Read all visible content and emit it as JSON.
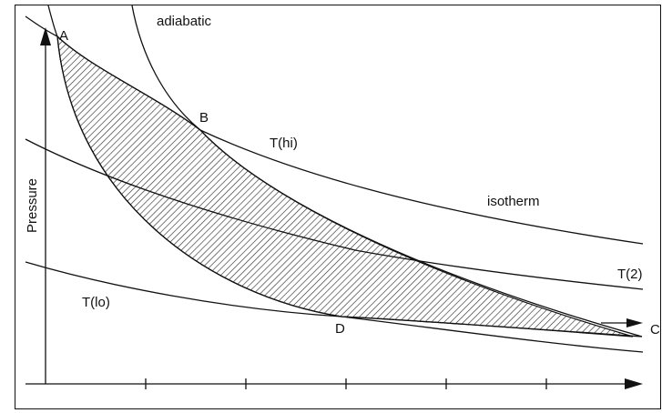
{
  "labels": {
    "adiabatic": "adiabatic",
    "point_a": "A",
    "point_b": "B",
    "point_d": "D",
    "t_hi": "T(hi)",
    "isotherm": "isotherm",
    "t_2": "T(2)",
    "t_lo": "T(lo)",
    "y_axis": "Pressure",
    "x_axis_partial": "C"
  },
  "colors": {
    "line": "#111111",
    "hatch": "#333333",
    "background": "#ffffff"
  }
}
